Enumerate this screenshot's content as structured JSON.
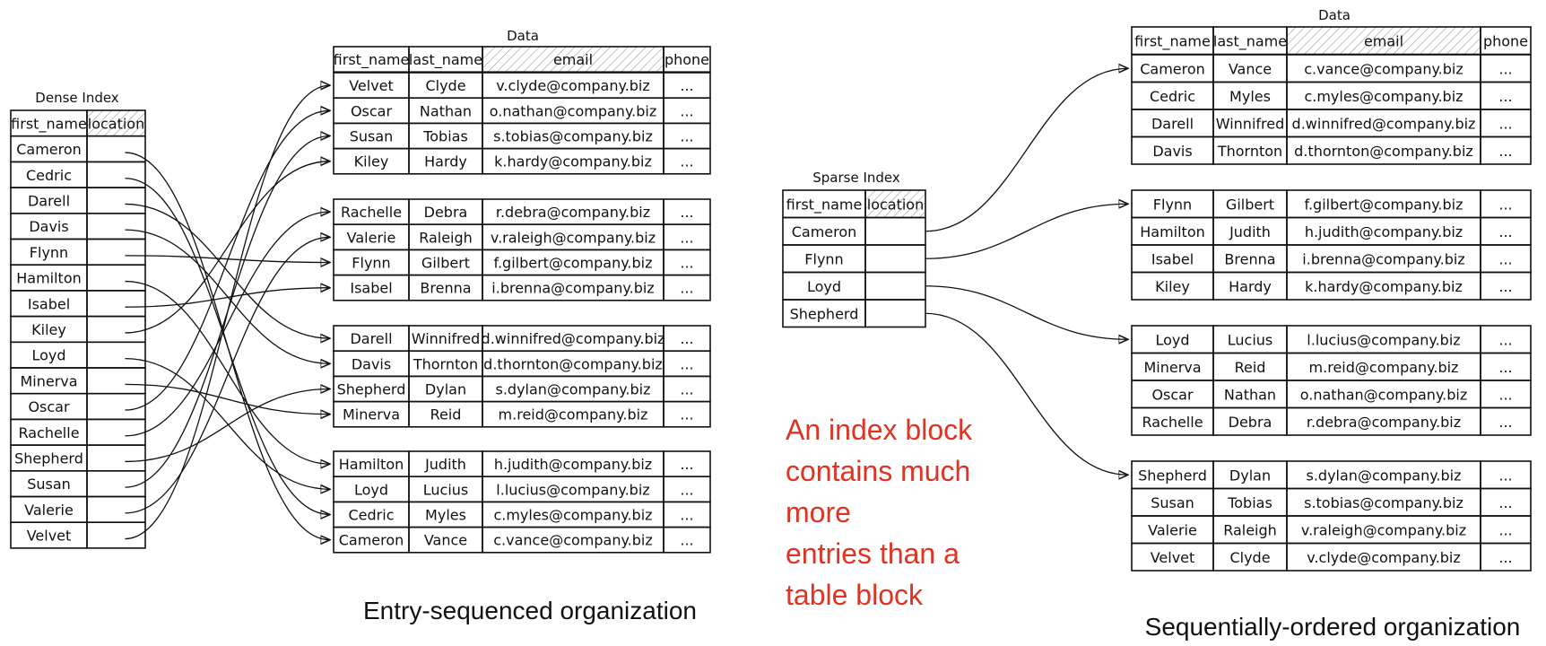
{
  "left": {
    "index_title": "Dense Index",
    "index_headers": [
      "first_name",
      "location"
    ],
    "index_rows": [
      "Cameron",
      "Cedric",
      "Darell",
      "Davis",
      "Flynn",
      "Hamilton",
      "Isabel",
      "Kiley",
      "Loyd",
      "Minerva",
      "Oscar",
      "Rachelle",
      "Shepherd",
      "Susan",
      "Valerie",
      "Velvet"
    ],
    "data_title": "Data",
    "data_headers": [
      "first_name",
      "last_name",
      "email",
      "phone"
    ],
    "blocks": [
      [
        [
          "Velvet",
          "Clyde",
          "v.clyde@company.biz",
          "..."
        ],
        [
          "Oscar",
          "Nathan",
          "o.nathan@company.biz",
          "..."
        ],
        [
          "Susan",
          "Tobias",
          "s.tobias@company.biz",
          "..."
        ],
        [
          "Kiley",
          "Hardy",
          "k.hardy@company.biz",
          "..."
        ]
      ],
      [
        [
          "Rachelle",
          "Debra",
          "r.debra@company.biz",
          "..."
        ],
        [
          "Valerie",
          "Raleigh",
          "v.raleigh@company.biz",
          "..."
        ],
        [
          "Flynn",
          "Gilbert",
          "f.gilbert@company.biz",
          "..."
        ],
        [
          "Isabel",
          "Brenna",
          "i.brenna@company.biz",
          "..."
        ]
      ],
      [
        [
          "Darell",
          "Winnifred",
          "d.winnifred@company.biz",
          "..."
        ],
        [
          "Davis",
          "Thornton",
          "d.thornton@company.biz",
          "..."
        ],
        [
          "Shepherd",
          "Dylan",
          "s.dylan@company.biz",
          "..."
        ],
        [
          "Minerva",
          "Reid",
          "m.reid@company.biz",
          "..."
        ]
      ],
      [
        [
          "Hamilton",
          "Judith",
          "h.judith@company.biz",
          "..."
        ],
        [
          "Loyd",
          "Lucius",
          "l.lucius@company.biz",
          "..."
        ],
        [
          "Cedric",
          "Myles",
          "c.myles@company.biz",
          "..."
        ],
        [
          "Cameron",
          "Vance",
          "c.vance@company.biz",
          "..."
        ]
      ]
    ],
    "caption": "Entry-sequenced organization"
  },
  "right": {
    "index_title": "Sparse Index",
    "index_headers": [
      "first_name",
      "location"
    ],
    "index_rows": [
      "Cameron",
      "Flynn",
      "Loyd",
      "Shepherd"
    ],
    "data_title": "Data",
    "data_headers": [
      "first_name",
      "last_name",
      "email",
      "phone"
    ],
    "blocks": [
      [
        [
          "Cameron",
          "Vance",
          "c.vance@company.biz",
          "..."
        ],
        [
          "Cedric",
          "Myles",
          "c.myles@company.biz",
          "..."
        ],
        [
          "Darell",
          "Winnifred",
          "d.winnifred@company.biz",
          "..."
        ],
        [
          "Davis",
          "Thornton",
          "d.thornton@company.biz",
          "..."
        ]
      ],
      [
        [
          "Flynn",
          "Gilbert",
          "f.gilbert@company.biz",
          "..."
        ],
        [
          "Hamilton",
          "Judith",
          "h.judith@company.biz",
          "..."
        ],
        [
          "Isabel",
          "Brenna",
          "i.brenna@company.biz",
          "..."
        ],
        [
          "Kiley",
          "Hardy",
          "k.hardy@company.biz",
          "..."
        ]
      ],
      [
        [
          "Loyd",
          "Lucius",
          "l.lucius@company.biz",
          "..."
        ],
        [
          "Minerva",
          "Reid",
          "m.reid@company.biz",
          "..."
        ],
        [
          "Oscar",
          "Nathan",
          "o.nathan@company.biz",
          "..."
        ],
        [
          "Rachelle",
          "Debra",
          "r.debra@company.biz",
          "..."
        ]
      ],
      [
        [
          "Shepherd",
          "Dylan",
          "s.dylan@company.biz",
          "..."
        ],
        [
          "Susan",
          "Tobias",
          "s.tobias@company.biz",
          "..."
        ],
        [
          "Valerie",
          "Raleigh",
          "v.raleigh@company.biz",
          "..."
        ],
        [
          "Velvet",
          "Clyde",
          "v.clyde@company.biz",
          "..."
        ]
      ]
    ],
    "caption": "Sequentially-ordered organization"
  },
  "note": [
    "An index block",
    "contains much",
    "more",
    "entries than a",
    "table block"
  ],
  "colors": {
    "note": "#e03322",
    "line": "#111111"
  }
}
